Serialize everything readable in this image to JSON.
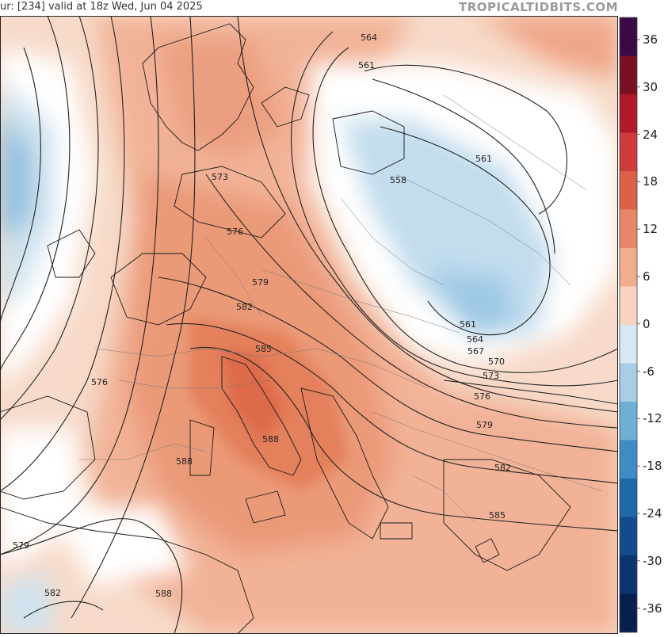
{
  "header": {
    "text": "ur: [234]   valid at 18z Wed, Jun 04 2025",
    "brand": "TROPICALTIDBITS.COM"
  },
  "colorbar": {
    "ticks": [
      "36",
      "30",
      "24",
      "18",
      "12",
      "6",
      "0",
      "-6",
      "-12",
      "-18",
      "-24",
      "-30",
      "-36"
    ],
    "colors": [
      "#3b0a45",
      "#7a1022",
      "#b3182a",
      "#cf3b3b",
      "#dd6048",
      "#e8866a",
      "#f2ad8f",
      "#f8d4c0",
      "#d8e8f2",
      "#a9cde6",
      "#6faed5",
      "#3e8cc3",
      "#1f68aa",
      "#134c8e",
      "#0c3470",
      "#081f4e"
    ]
  },
  "contour_labels": [
    {
      "value": "564"
    },
    {
      "value": "561"
    },
    {
      "value": "561"
    },
    {
      "value": "558"
    },
    {
      "value": "573"
    },
    {
      "value": "576"
    },
    {
      "value": "579"
    },
    {
      "value": "582"
    },
    {
      "value": "585"
    },
    {
      "value": "576"
    },
    {
      "value": "588"
    },
    {
      "value": "588"
    },
    {
      "value": "561"
    },
    {
      "value": "564"
    },
    {
      "value": "567"
    },
    {
      "value": "570"
    },
    {
      "value": "573"
    },
    {
      "value": "576"
    },
    {
      "value": "579"
    },
    {
      "value": "582"
    },
    {
      "value": "585"
    },
    {
      "value": "579"
    },
    {
      "value": "582"
    },
    {
      "value": "588"
    }
  ]
}
